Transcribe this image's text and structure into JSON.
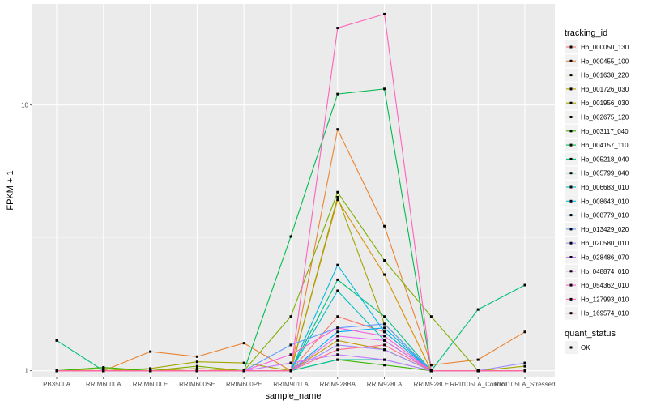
{
  "chart_data": {
    "type": "line",
    "xlabel": "sample_name",
    "ylabel": "FPKM + 1",
    "y_scale": "log10",
    "ylim": [
      0.95,
      24
    ],
    "y_ticks": [
      1,
      10
    ],
    "y_tick_labels": [
      "1",
      "10"
    ],
    "grid": true,
    "legend_position": "right",
    "categories": [
      "PB350LA",
      "RRIM600LA",
      "RRIM600LE",
      "RRIM600SE",
      "RRIM600PE",
      "RRIM901LA",
      "RRIM928BA",
      "RRIM928LA",
      "RRIM928LE",
      "RRII105LA_Control",
      "RRII105LA_Stressed"
    ],
    "category_labels": [
      "PB350LA",
      "RRIM600LA",
      "RRIM600LE",
      "RRIM600SE",
      "RRIM600PE",
      "RRIM901LA",
      "RRIM928BA",
      "RRIM928LA",
      "RRIM928LE",
      "RRII105LA_Control",
      "RRII105LA_Stressed"
    ],
    "legend_title": "tracking_id",
    "point_legend_title": "quant_status",
    "point_legend_label": "OK",
    "series": [
      {
        "name": "Hb_000050_130",
        "color": "#F8766D",
        "values": [
          1.0,
          1.0,
          1.0,
          1.0,
          1.0,
          1.0,
          1.6,
          1.4,
          1.0,
          1.0,
          1.0
        ]
      },
      {
        "name": "Hb_000455_100",
        "color": "#EA8331",
        "values": [
          1.0,
          1.0,
          1.18,
          1.13,
          1.27,
          1.0,
          8.1,
          3.5,
          1.05,
          1.1,
          1.4
        ]
      },
      {
        "name": "Hb_001638_220",
        "color": "#D89000",
        "values": [
          1.0,
          1.02,
          1.0,
          1.0,
          1.0,
          1.0,
          4.4,
          2.3,
          1.0,
          1.0,
          1.0
        ]
      },
      {
        "name": "Hb_001726_030",
        "color": "#C09B00",
        "values": [
          1.0,
          1.0,
          1.0,
          1.02,
          1.0,
          1.0,
          1.3,
          1.2,
          1.0,
          1.0,
          1.0
        ]
      },
      {
        "name": "Hb_001956_030",
        "color": "#A3A500",
        "values": [
          1.0,
          1.0,
          1.02,
          1.08,
          1.07,
          1.0,
          4.5,
          1.5,
          1.0,
          1.0,
          1.04
        ]
      },
      {
        "name": "Hb_002675_120",
        "color": "#7CAE00",
        "values": [
          1.0,
          1.02,
          1.0,
          1.04,
          1.0,
          1.6,
          4.7,
          2.6,
          1.6,
          1.0,
          1.0
        ]
      },
      {
        "name": "Hb_003117_040",
        "color": "#39B600",
        "values": [
          1.0,
          1.03,
          1.0,
          1.0,
          1.0,
          1.0,
          1.1,
          1.05,
          1.0,
          1.0,
          1.0
        ]
      },
      {
        "name": "Hb_004157_110",
        "color": "#00BB4E",
        "values": [
          1.0,
          1.0,
          1.0,
          1.0,
          1.0,
          3.2,
          11.0,
          11.5,
          1.0,
          1.0,
          1.0
        ]
      },
      {
        "name": "Hb_005218_040",
        "color": "#00BF7D",
        "values": [
          1.3,
          1.0,
          1.0,
          1.0,
          1.0,
          1.0,
          2.2,
          1.6,
          1.0,
          1.7,
          2.1
        ]
      },
      {
        "name": "Hb_005799_040",
        "color": "#00C1A3",
        "values": [
          1.0,
          1.0,
          1.0,
          1.0,
          1.0,
          1.0,
          1.1,
          1.1,
          1.0,
          1.0,
          1.0
        ]
      },
      {
        "name": "Hb_006683_010",
        "color": "#00BFC4",
        "values": [
          1.0,
          1.0,
          1.0,
          1.0,
          1.0,
          1.0,
          2.0,
          1.3,
          1.0,
          1.0,
          1.0
        ]
      },
      {
        "name": "Hb_008643_010",
        "color": "#00B9E3",
        "values": [
          1.0,
          1.0,
          1.0,
          1.0,
          1.0,
          1.0,
          2.5,
          1.4,
          1.0,
          1.0,
          1.0
        ]
      },
      {
        "name": "Hb_008779_010",
        "color": "#00ADFA",
        "values": [
          1.0,
          1.0,
          1.0,
          1.0,
          1.0,
          1.0,
          1.4,
          1.45,
          1.0,
          1.0,
          1.0
        ]
      },
      {
        "name": "Hb_013429_020",
        "color": "#619CFF",
        "values": [
          1.0,
          1.0,
          1.0,
          1.0,
          1.0,
          1.25,
          1.45,
          1.5,
          1.0,
          1.0,
          1.0
        ]
      },
      {
        "name": "Hb_020580_010",
        "color": "#9F8CFF",
        "values": [
          1.0,
          1.0,
          1.0,
          1.0,
          1.0,
          1.0,
          1.25,
          1.2,
          1.0,
          1.0,
          1.07
        ]
      },
      {
        "name": "Hb_028486_070",
        "color": "#C77CFF",
        "values": [
          1.0,
          1.0,
          1.0,
          1.0,
          1.0,
          1.07,
          1.15,
          1.1,
          1.0,
          1.0,
          1.0
        ]
      },
      {
        "name": "Hb_048874_010",
        "color": "#E76BF3",
        "values": [
          1.0,
          1.0,
          1.0,
          1.0,
          1.0,
          1.0,
          1.35,
          1.3,
          1.0,
          1.0,
          1.0
        ]
      },
      {
        "name": "Hb_054362_010",
        "color": "#FA62DB",
        "values": [
          1.0,
          1.0,
          1.0,
          1.0,
          1.0,
          1.15,
          1.45,
          1.35,
          1.0,
          1.0,
          1.0
        ]
      },
      {
        "name": "Hb_127993_010",
        "color": "#FF62BC",
        "values": [
          1.0,
          1.0,
          1.0,
          1.0,
          1.0,
          1.0,
          19.5,
          22.0,
          1.0,
          1.0,
          1.0
        ]
      },
      {
        "name": "Hb_169574_010",
        "color": "#FF6C91",
        "values": [
          1.0,
          1.0,
          1.0,
          1.0,
          1.0,
          1.0,
          1.2,
          1.25,
          1.0,
          1.0,
          1.0
        ]
      }
    ]
  }
}
